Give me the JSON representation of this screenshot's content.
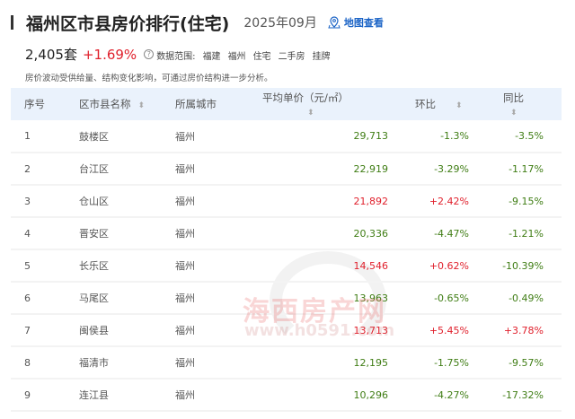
{
  "header": {
    "title": "福州区市县房价排行(住宅)",
    "date": "2025年09月",
    "map_link": "地图查看"
  },
  "stats": {
    "count": "2,405套",
    "change": "+1.69%",
    "scope_label": "数据范围:",
    "scope": [
      "福建",
      "福州",
      "住宅",
      "二手房",
      "挂牌"
    ]
  },
  "note": "房价波动受供给量、结构变化影响，可通过房价结构进一步分析。",
  "table": {
    "headers": [
      "序号",
      "区市县名称",
      "所属城市",
      "平均单价（元/㎡）",
      "环比",
      "同比"
    ],
    "rows": [
      [
        "1",
        "鼓楼区",
        "福州",
        "29,713",
        "-1.3%",
        "-3.5%"
      ],
      [
        "2",
        "台江区",
        "福州",
        "22,919",
        "-3.29%",
        "-1.17%"
      ],
      [
        "3",
        "仓山区",
        "福州",
        "21,892",
        "+2.42%",
        "-9.15%"
      ],
      [
        "4",
        "晋安区",
        "福州",
        "20,336",
        "-4.47%",
        "-1.21%"
      ],
      [
        "5",
        "长乐区",
        "福州",
        "14,546",
        "+0.62%",
        "-10.39%"
      ],
      [
        "6",
        "马尾区",
        "福州",
        "13,963",
        "-0.65%",
        "-0.49%"
      ],
      [
        "7",
        "闽侯县",
        "福州",
        "13,713",
        "+5.45%",
        "+3.78%"
      ],
      [
        "8",
        "福清市",
        "福州",
        "12,195",
        "-1.75%",
        "-9.57%"
      ],
      [
        "9",
        "连江县",
        "福州",
        "10,296",
        "-4.27%",
        "-17.32%"
      ]
    ]
  },
  "watermark": {
    "text": "海西房产网",
    "url": "www.h0591.com"
  },
  "colors": {
    "up": "#e0202c",
    "down": "#3f7d14",
    "link": "#1a63c6",
    "header_bg": "#eaf2fc"
  }
}
